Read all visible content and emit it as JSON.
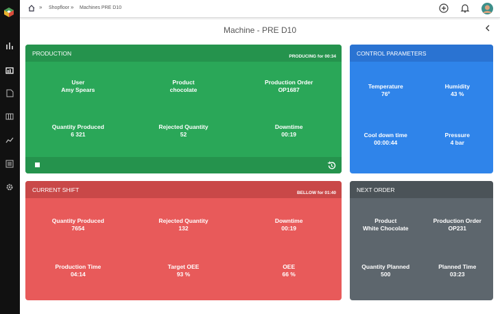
{
  "breadcrumb": [
    "Shopfloor",
    "Machines PRE D10"
  ],
  "page_title": "Machine - PRE D10",
  "cards": [
    {
      "title": "PRODUCTION",
      "status": "PRODUCING for 00:34",
      "fields": [
        {
          "label": "User",
          "value": "Amy Spears"
        },
        {
          "label": "Product",
          "value": "chocolate"
        },
        {
          "label": "Production Order",
          "value": "OP1687"
        },
        {
          "label": "Quantity Produced",
          "value": "6 321"
        },
        {
          "label": "Rejected Quantity",
          "value": "52"
        },
        {
          "label": "Downtime",
          "value": "00:19"
        }
      ]
    },
    {
      "title": "CONTROL PARAMETERS",
      "fields": [
        {
          "label": "Temperature",
          "value": "76º"
        },
        {
          "label": "Humidity",
          "value": "43 %"
        },
        {
          "label": "Cool down time",
          "value": "00:00:44"
        },
        {
          "label": "Pressure",
          "value": "4 bar"
        }
      ]
    },
    {
      "title": "CURRENT SHIFT",
      "status": "BELLOW for 01:40",
      "fields": [
        {
          "label": "Quantity Produced",
          "value": "7654"
        },
        {
          "label": "Rejected Quantity",
          "value": "132"
        },
        {
          "label": "Downtime",
          "value": "00:19"
        },
        {
          "label": "Production Time",
          "value": "04:14"
        },
        {
          "label": "Target OEE",
          "value": "93 %"
        },
        {
          "label": "OEE",
          "value": "66 %"
        }
      ]
    },
    {
      "title": "NEXT ORDER",
      "fields": [
        {
          "label": "Product",
          "value": "White Chocolate"
        },
        {
          "label": "Production Order",
          "value": "OP231"
        },
        {
          "label": "Quantity Planned",
          "value": "500"
        },
        {
          "label": "Planned Time",
          "value": "03:23"
        }
      ]
    }
  ]
}
